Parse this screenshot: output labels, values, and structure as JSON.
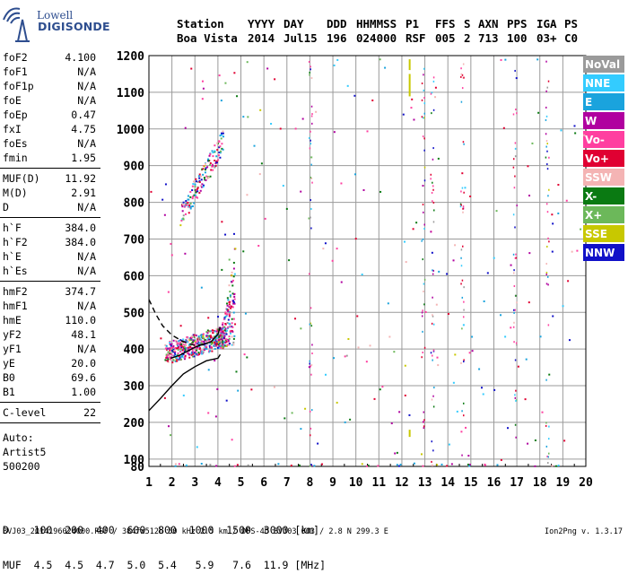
{
  "logo": {
    "line1": "Lowell",
    "line2": "DIGISONDE"
  },
  "header": {
    "row1": [
      "Station",
      "YYYY",
      "DAY",
      "DDD",
      "HHMMSS",
      "P1",
      "FFS",
      "S",
      "AXN",
      "PPS",
      "IGA",
      "PS"
    ],
    "row2": [
      "Boa Vista",
      "2014",
      "Jul15",
      "196",
      "024000",
      "RSF",
      "005",
      "2",
      "713",
      "100",
      "03+",
      "C0"
    ]
  },
  "params": [
    {
      "label": "foF2",
      "value": "4.100"
    },
    {
      "label": "foF1",
      "value": "N/A"
    },
    {
      "label": "foF1p",
      "value": "N/A"
    },
    {
      "label": "foE",
      "value": "N/A"
    },
    {
      "label": "foEp",
      "value": "0.47"
    },
    {
      "label": "fxI",
      "value": "4.75"
    },
    {
      "label": "foEs",
      "value": "N/A"
    },
    {
      "label": "fmin",
      "value": "1.95"
    },
    {
      "sep": true
    },
    {
      "label": "MUF(D)",
      "value": "11.92"
    },
    {
      "label": "M(D)",
      "value": "2.91"
    },
    {
      "label": "D",
      "value": "N/A"
    },
    {
      "sep": true
    },
    {
      "label": "h`F",
      "value": "384.0"
    },
    {
      "label": "h`F2",
      "value": "384.0"
    },
    {
      "label": "h`E",
      "value": "N/A"
    },
    {
      "label": "h`Es",
      "value": "N/A"
    },
    {
      "sep": true
    },
    {
      "label": "hmF2",
      "value": "374.7"
    },
    {
      "label": "hmF1",
      "value": "N/A"
    },
    {
      "label": "hmE",
      "value": "110.0"
    },
    {
      "label": "yF2",
      "value": "48.1"
    },
    {
      "label": "yF1",
      "value": "N/A"
    },
    {
      "label": "yE",
      "value": "20.0"
    },
    {
      "label": "B0",
      "value": "69.6"
    },
    {
      "label": "B1",
      "value": "1.00"
    },
    {
      "sep": true
    },
    {
      "label": "C-level",
      "value": "22"
    },
    {
      "sep": true
    }
  ],
  "auto": [
    "Auto:",
    "Artist5",
    "500200"
  ],
  "legend": [
    {
      "label": "NoVal",
      "color": "#9A9A9A"
    },
    {
      "label": "NNE",
      "color": "#33CCFF"
    },
    {
      "label": "E",
      "color": "#1AA3DD"
    },
    {
      "label": "W",
      "color": "#B0009F"
    },
    {
      "label": "Vo-",
      "color": "#FF3FA0"
    },
    {
      "label": "Vo+",
      "color": "#E00032"
    },
    {
      "label": "SSW",
      "color": "#F4B4B4"
    },
    {
      "label": "X-",
      "color": "#0A7A12"
    },
    {
      "label": "X+",
      "color": "#6CB85A"
    },
    {
      "label": "SSE",
      "color": "#C8C800"
    },
    {
      "label": "NNW",
      "color": "#1010C8"
    }
  ],
  "d_table": {
    "d_label": "D",
    "d_values": [
      "100",
      "200",
      "400",
      "600",
      "800",
      "1000",
      "1500",
      "3000"
    ],
    "d_unit": "[km]",
    "muf_label": "MUF",
    "muf_values": [
      "4.5",
      "4.5",
      "4.7",
      "5.0",
      "5.4",
      "5.9",
      "7.6",
      "11.9"
    ],
    "muf_unit": "[MHz]"
  },
  "footer": {
    "left": "BVJ03_2014196024000.RSF / 384fx512h 50 kHz 2.5 km / DPS-4D BVJ03 003 / 2.8 N 299.3 E",
    "right": "Ion2Png v. 1.3.17"
  },
  "chart_data": {
    "type": "scatter",
    "xlim": [
      1,
      20
    ],
    "ylim": [
      80,
      1200
    ],
    "x_ticks": [
      1,
      2,
      3,
      4,
      5,
      6,
      7,
      8,
      9,
      10,
      11,
      12,
      13,
      14,
      15,
      16,
      17,
      18,
      19,
      20
    ],
    "y_ticks": [
      80,
      100,
      200,
      300,
      400,
      500,
      600,
      700,
      800,
      900,
      1000,
      1100,
      1200
    ],
    "grid": true,
    "legend_position": "right",
    "ionogram_echoes": [
      {
        "name": "F2 trace (main)",
        "x_range": [
          1.7,
          4.2
        ],
        "y_range": [
          360,
          470
        ]
      },
      {
        "name": "F2 near critical",
        "x_range": [
          3.8,
          4.7
        ],
        "y_range": [
          390,
          690
        ]
      },
      {
        "name": "F2 multi-hop trace",
        "x_range": [
          2.4,
          4.2
        ],
        "y_range": [
          760,
          1000
        ]
      }
    ],
    "profile_curves": [
      {
        "name": "true height profile",
        "style": "solid",
        "points": [
          [
            1.0,
            232
          ],
          [
            1.5,
            265
          ],
          [
            2.0,
            300
          ],
          [
            2.5,
            332
          ],
          [
            3.0,
            352
          ],
          [
            3.5,
            368
          ],
          [
            4.0,
            375
          ],
          [
            4.1,
            385
          ]
        ]
      },
      {
        "name": "virtual height trace",
        "style": "solid",
        "points": [
          [
            1.95,
            375
          ],
          [
            2.3,
            382
          ],
          [
            2.7,
            395
          ],
          [
            3.0,
            405
          ],
          [
            3.3,
            412
          ],
          [
            3.7,
            420
          ],
          [
            4.0,
            440
          ],
          [
            4.1,
            460
          ]
        ]
      },
      {
        "name": "extrapolated topside",
        "style": "dashed",
        "points": [
          [
            1.0,
            535
          ],
          [
            1.3,
            495
          ],
          [
            1.6,
            463
          ],
          [
            2.0,
            438
          ],
          [
            2.5,
            420
          ],
          [
            3.0,
            410
          ],
          [
            3.5,
            412
          ]
        ]
      }
    ]
  }
}
